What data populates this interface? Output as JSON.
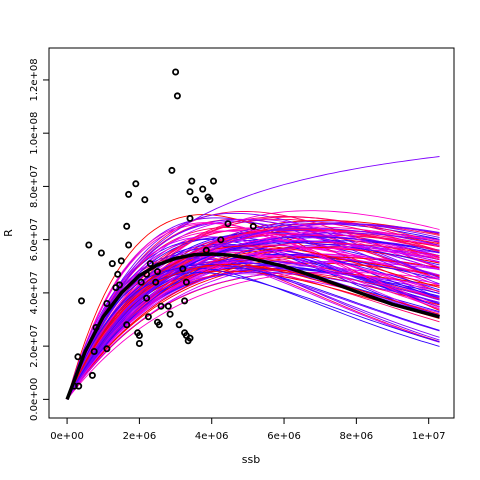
{
  "chart_data": {
    "type": "scatter",
    "title": "",
    "xlabel": "ssb",
    "ylabel": "R",
    "xlim": [
      -500000,
      10700000
    ],
    "ylim": [
      -7000000,
      132000000
    ],
    "x_ticks": [
      0,
      2000000,
      4000000,
      6000000,
      8000000,
      10000000
    ],
    "x_tick_labels": [
      "0e+00",
      "2e+06",
      "4e+06",
      "6e+06",
      "8e+06",
      "1e+07"
    ],
    "y_ticks": [
      0,
      20000000,
      40000000,
      60000000,
      80000000,
      100000000,
      120000000
    ],
    "y_tick_labels": [
      "0.0e+00",
      "2.0e+07",
      "4.0e+07",
      "6.0e+07",
      "8.0e+07",
      "1.0e+08",
      "1.2e+08"
    ],
    "grid": false,
    "series": [
      {
        "kind": "points",
        "color": "#000000",
        "points": [
          [
            200000,
            5000000
          ],
          [
            300000,
            16000000
          ],
          [
            320000,
            5000000
          ],
          [
            400000,
            37000000
          ],
          [
            600000,
            58000000
          ],
          [
            700000,
            9000000
          ],
          [
            750000,
            18000000
          ],
          [
            800000,
            27000000
          ],
          [
            950000,
            55000000
          ],
          [
            1100000,
            36000000
          ],
          [
            1100000,
            19000000
          ],
          [
            1250000,
            51000000
          ],
          [
            1350000,
            42000000
          ],
          [
            1400000,
            47000000
          ],
          [
            1450000,
            43000000
          ],
          [
            1500000,
            52000000
          ],
          [
            1650000,
            28000000
          ],
          [
            1650000,
            65000000
          ],
          [
            1700000,
            58000000
          ],
          [
            1700000,
            77000000
          ],
          [
            1900000,
            81000000
          ],
          [
            1950000,
            25000000
          ],
          [
            2000000,
            24000000
          ],
          [
            2000000,
            21000000
          ],
          [
            2050000,
            44000000
          ],
          [
            2150000,
            75000000
          ],
          [
            2200000,
            47000000
          ],
          [
            2200000,
            38000000
          ],
          [
            2250000,
            31000000
          ],
          [
            2300000,
            51000000
          ],
          [
            2450000,
            44000000
          ],
          [
            2500000,
            48000000
          ],
          [
            2500000,
            29000000
          ],
          [
            2550000,
            28000000
          ],
          [
            2600000,
            35000000
          ],
          [
            2800000,
            35000000
          ],
          [
            2850000,
            32000000
          ],
          [
            2900000,
            86000000
          ],
          [
            3000000,
            123000000
          ],
          [
            3050000,
            114000000
          ],
          [
            3100000,
            28000000
          ],
          [
            3200000,
            49000000
          ],
          [
            3250000,
            37000000
          ],
          [
            3250000,
            25000000
          ],
          [
            3300000,
            24000000
          ],
          [
            3300000,
            44000000
          ],
          [
            3350000,
            22000000
          ],
          [
            3400000,
            23000000
          ],
          [
            3400000,
            78000000
          ],
          [
            3400000,
            68000000
          ],
          [
            3450000,
            82000000
          ],
          [
            3550000,
            75000000
          ],
          [
            3750000,
            79000000
          ],
          [
            3850000,
            56000000
          ],
          [
            3900000,
            76000000
          ],
          [
            3950000,
            75000000
          ],
          [
            4050000,
            82000000
          ],
          [
            4250000,
            60000000
          ],
          [
            4450000,
            66000000
          ],
          [
            5150000,
            65000000
          ]
        ]
      },
      {
        "kind": "line",
        "name": "",
        "color": "#000000",
        "points": [
          [
            0,
            0
          ],
          [
            500000,
            18000000
          ],
          [
            1000000,
            31000000
          ],
          [
            1500000,
            40000000
          ],
          [
            2000000,
            46500000
          ],
          [
            2500000,
            50500000
          ],
          [
            3000000,
            53000000
          ],
          [
            3500000,
            54300000
          ],
          [
            4000000,
            54600000
          ],
          [
            4500000,
            54200000
          ],
          [
            5000000,
            53200000
          ],
          [
            6000000,
            50000000
          ],
          [
            7000000,
            45500000
          ],
          [
            8000000,
            40500000
          ],
          [
            9000000,
            35700000
          ],
          [
            10300000,
            31000000
          ]
        ]
      }
    ],
    "bootstrap_curves": {
      "count": 120,
      "colors": [
        "#ff0000",
        "#ff0066",
        "#ff00cc",
        "#cc00ff",
        "#7f00ff",
        "#3300ff"
      ]
    }
  }
}
